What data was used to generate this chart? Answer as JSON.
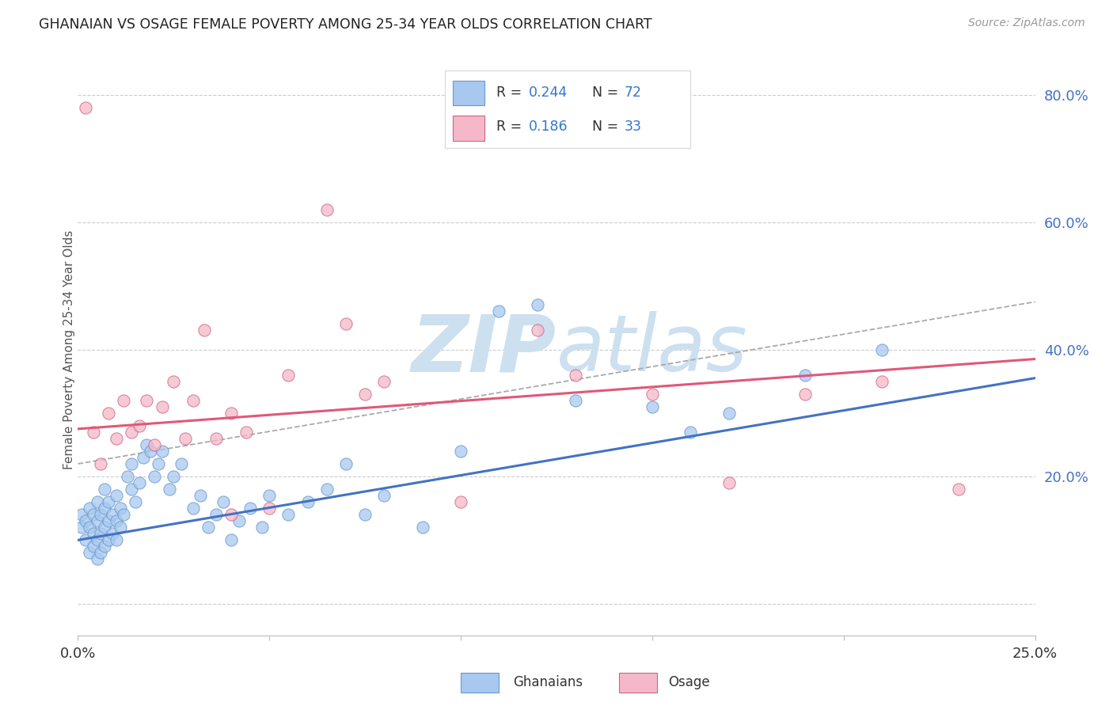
{
  "title": "GHANAIAN VS OSAGE FEMALE POVERTY AMONG 25-34 YEAR OLDS CORRELATION CHART",
  "source": "Source: ZipAtlas.com",
  "ylabel": "Female Poverty Among 25-34 Year Olds",
  "xlim": [
    0.0,
    0.25
  ],
  "ylim": [
    -0.05,
    0.85
  ],
  "color_ghanaian": "#a8c8f0",
  "color_osage": "#f5b8c8",
  "line_color_ghanaian": "#4472c4",
  "line_color_osage": "#e05878",
  "ci_color": "#aaaaaa",
  "watermark_zip": "ZIP",
  "watermark_atlas": "atlas",
  "watermark_color": "#cce0f0",
  "background_color": "#ffffff",
  "grid_color": "#cccccc",
  "legend_r1": "0.244",
  "legend_n1": "72",
  "legend_r2": "0.186",
  "legend_n2": "33",
  "ghanaian_x": [
    0.001,
    0.001,
    0.002,
    0.002,
    0.003,
    0.003,
    0.003,
    0.004,
    0.004,
    0.004,
    0.005,
    0.005,
    0.005,
    0.005,
    0.006,
    0.006,
    0.006,
    0.007,
    0.007,
    0.007,
    0.007,
    0.008,
    0.008,
    0.008,
    0.009,
    0.009,
    0.01,
    0.01,
    0.01,
    0.011,
    0.011,
    0.012,
    0.013,
    0.014,
    0.014,
    0.015,
    0.016,
    0.017,
    0.018,
    0.019,
    0.02,
    0.021,
    0.022,
    0.024,
    0.025,
    0.027,
    0.03,
    0.032,
    0.034,
    0.036,
    0.038,
    0.04,
    0.042,
    0.045,
    0.048,
    0.05,
    0.055,
    0.06,
    0.065,
    0.07,
    0.075,
    0.08,
    0.09,
    0.1,
    0.11,
    0.12,
    0.13,
    0.15,
    0.16,
    0.17,
    0.19,
    0.21
  ],
  "ghanaian_y": [
    0.12,
    0.14,
    0.1,
    0.13,
    0.08,
    0.12,
    0.15,
    0.09,
    0.11,
    0.14,
    0.07,
    0.1,
    0.13,
    0.16,
    0.08,
    0.11,
    0.14,
    0.09,
    0.12,
    0.15,
    0.18,
    0.1,
    0.13,
    0.16,
    0.11,
    0.14,
    0.1,
    0.13,
    0.17,
    0.12,
    0.15,
    0.14,
    0.2,
    0.18,
    0.22,
    0.16,
    0.19,
    0.23,
    0.25,
    0.24,
    0.2,
    0.22,
    0.24,
    0.18,
    0.2,
    0.22,
    0.15,
    0.17,
    0.12,
    0.14,
    0.16,
    0.1,
    0.13,
    0.15,
    0.12,
    0.17,
    0.14,
    0.16,
    0.18,
    0.22,
    0.14,
    0.17,
    0.12,
    0.24,
    0.46,
    0.47,
    0.32,
    0.31,
    0.27,
    0.3,
    0.36,
    0.4
  ],
  "osage_x": [
    0.002,
    0.004,
    0.006,
    0.008,
    0.01,
    0.012,
    0.014,
    0.016,
    0.018,
    0.02,
    0.022,
    0.025,
    0.028,
    0.03,
    0.033,
    0.036,
    0.04,
    0.044,
    0.05,
    0.055,
    0.065,
    0.07,
    0.075,
    0.08,
    0.1,
    0.12,
    0.13,
    0.15,
    0.17,
    0.19,
    0.21,
    0.23,
    0.04
  ],
  "osage_y": [
    0.78,
    0.27,
    0.22,
    0.3,
    0.26,
    0.32,
    0.27,
    0.28,
    0.32,
    0.25,
    0.31,
    0.35,
    0.26,
    0.32,
    0.43,
    0.26,
    0.3,
    0.27,
    0.15,
    0.36,
    0.62,
    0.44,
    0.33,
    0.35,
    0.16,
    0.43,
    0.36,
    0.33,
    0.19,
    0.33,
    0.35,
    0.18,
    0.14
  ]
}
